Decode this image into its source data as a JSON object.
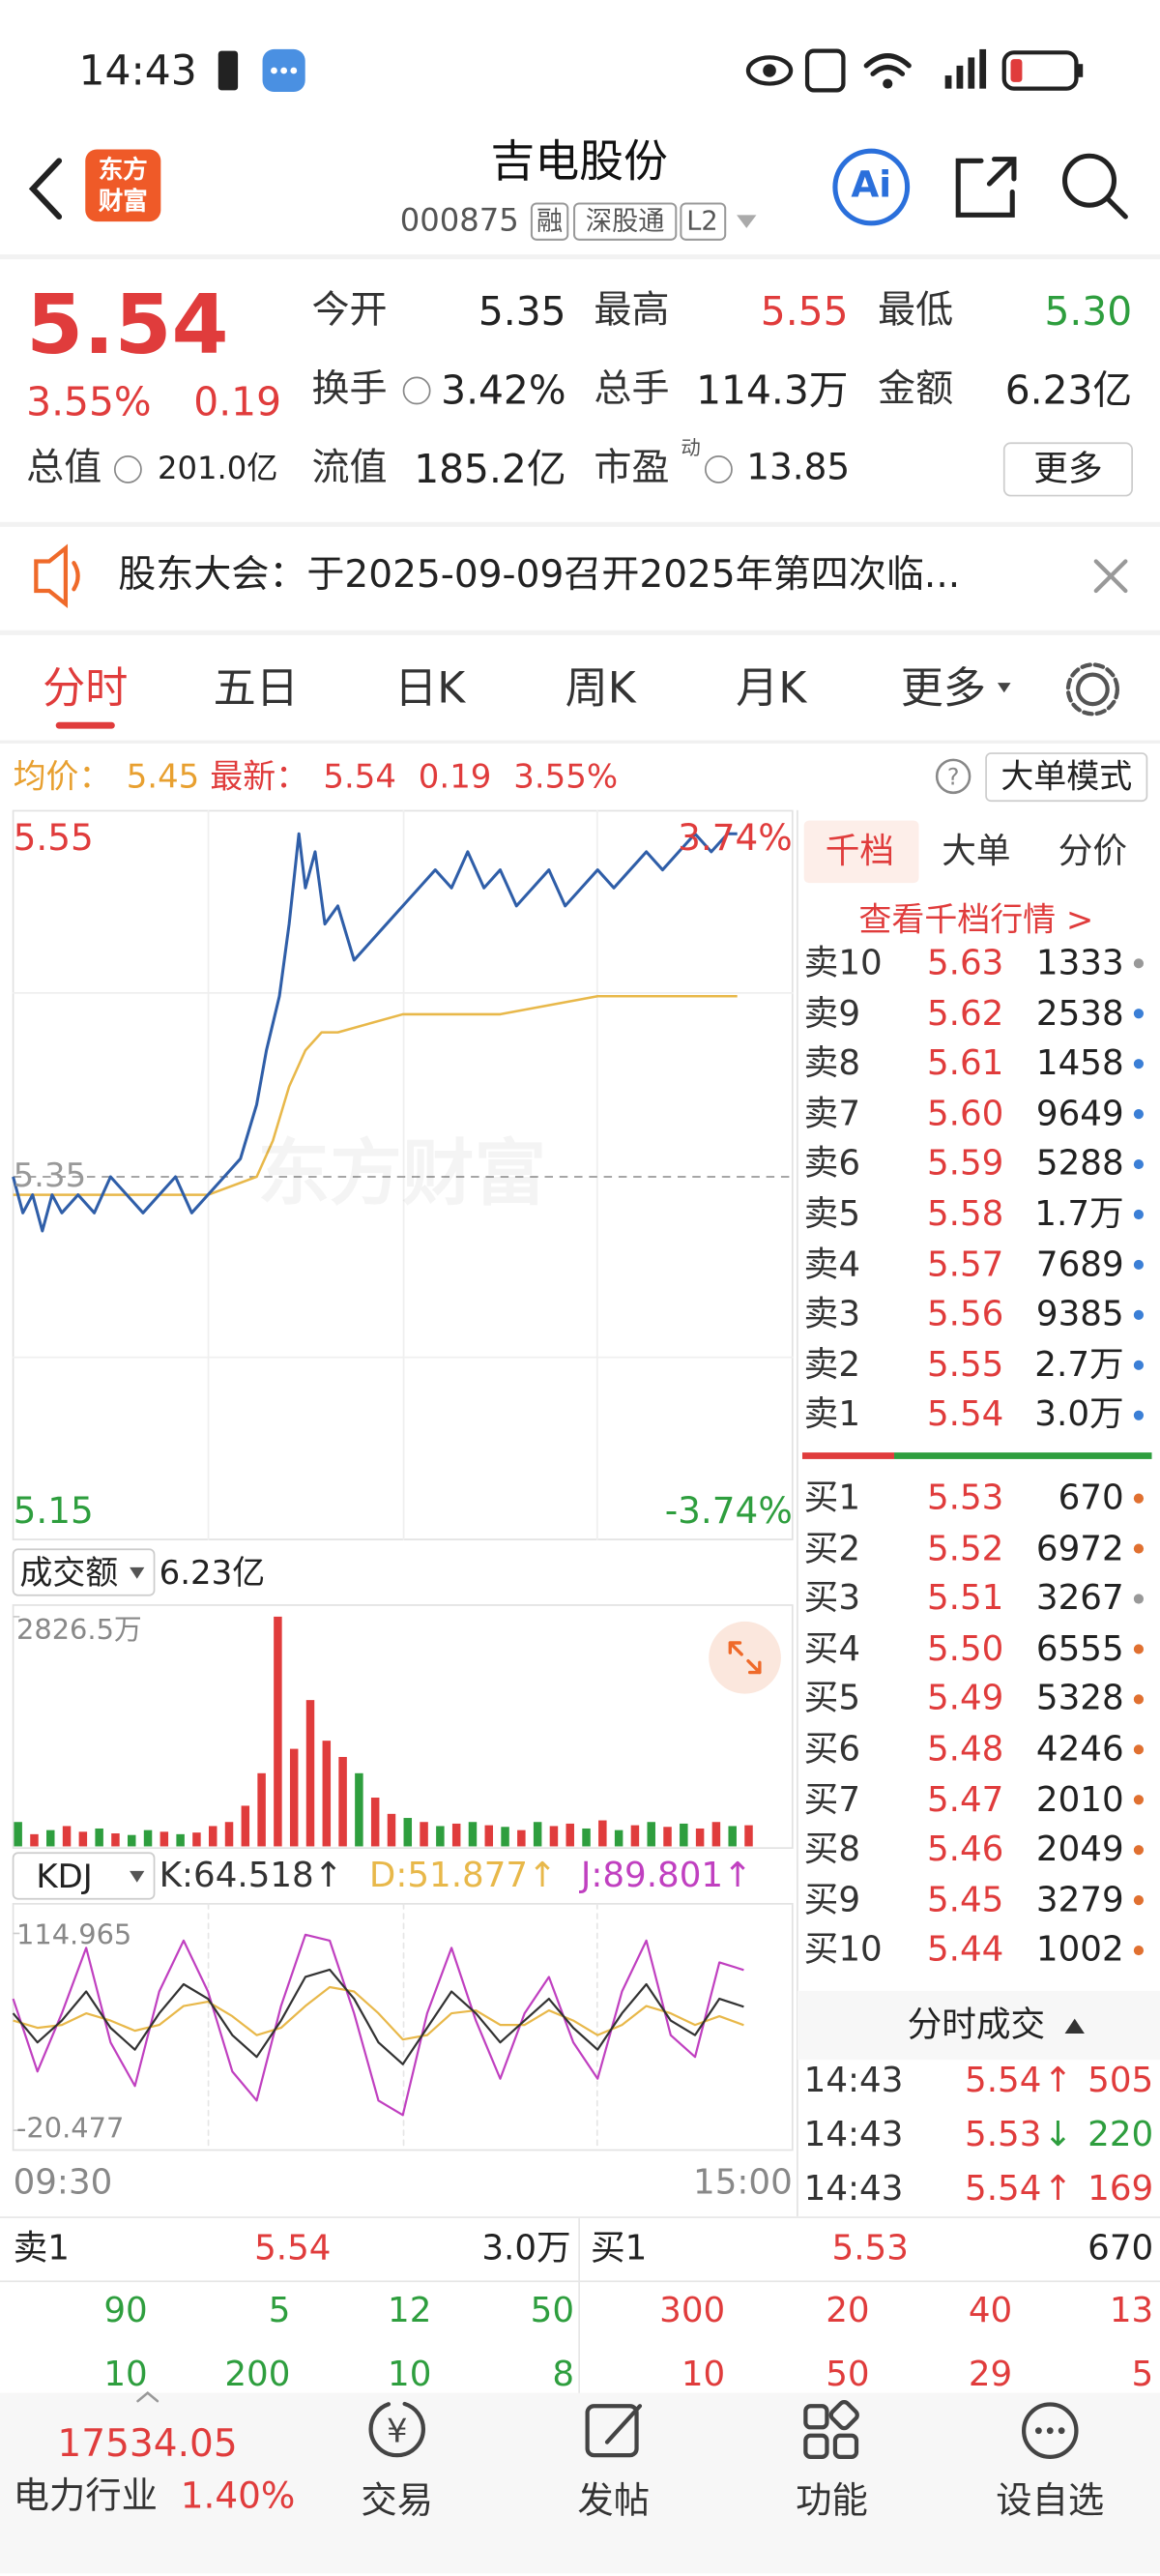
{
  "status_bar": {
    "time": "14:43"
  },
  "header": {
    "logo": [
      "东方",
      "财富"
    ],
    "title": "吉电股份",
    "code": "000875",
    "tags": [
      "融",
      "深股通",
      "L2"
    ],
    "ai": "Ai"
  },
  "quote": {
    "price": "5.54",
    "change_pct": "3.55%",
    "change": "0.19",
    "fields": [
      {
        "label": "今开",
        "value": "5.35"
      },
      {
        "label": "最高",
        "value": "5.55"
      },
      {
        "label": "最低",
        "value": "5.30"
      },
      {
        "label": "换手",
        "value": "3.42%"
      },
      {
        "label": "总手",
        "value": "114.3万"
      },
      {
        "label": "金额",
        "value": "6.23亿"
      },
      {
        "label": "总值",
        "value": "201.0亿"
      },
      {
        "label": "流值",
        "value": "185.2亿"
      },
      {
        "label": "市盈",
        "value": "13.85"
      }
    ],
    "pe_sup": "动",
    "more": "更多"
  },
  "notice": {
    "text": "股东大会：于2025-09-09召开2025年第四次临..."
  },
  "tabs": [
    "分时",
    "五日",
    "日K",
    "周K",
    "月K",
    "更多"
  ],
  "info": {
    "avg_label": "均价：",
    "avg": "5.45",
    "latest_label": "最新：",
    "latest": "5.54",
    "change": "0.19",
    "change_pct": "3.55%",
    "mode": "大单模式"
  },
  "intraday": {
    "ylim": [
      5.15,
      5.55
    ],
    "pct_labels": [
      "3.74%",
      "-3.74%"
    ],
    "prev_close": 5.35,
    "xlim": [
      0,
      240
    ],
    "x_labels": [
      "09:30",
      "15:00"
    ],
    "watermark": "东方财富",
    "price": {
      "color": "#2f5ea8",
      "x": [
        0,
        3,
        6,
        9,
        12,
        15,
        20,
        25,
        30,
        35,
        40,
        45,
        50,
        55,
        60,
        65,
        70,
        75,
        78,
        82,
        85,
        88,
        90,
        93,
        96,
        100,
        105,
        110,
        115,
        120,
        125,
        130,
        135,
        140,
        145,
        150,
        155,
        160,
        165,
        170,
        175,
        180,
        185,
        190,
        195,
        200,
        205,
        210,
        215,
        220,
        223
      ],
      "values": [
        5.35,
        5.33,
        5.34,
        5.32,
        5.34,
        5.33,
        5.34,
        5.33,
        5.35,
        5.34,
        5.33,
        5.34,
        5.35,
        5.33,
        5.34,
        5.35,
        5.36,
        5.39,
        5.42,
        5.45,
        5.49,
        5.54,
        5.51,
        5.53,
        5.49,
        5.5,
        5.47,
        5.48,
        5.49,
        5.5,
        5.51,
        5.52,
        5.51,
        5.53,
        5.51,
        5.52,
        5.5,
        5.51,
        5.52,
        5.5,
        5.51,
        5.52,
        5.51,
        5.52,
        5.53,
        5.52,
        5.53,
        5.54,
        5.53,
        5.54,
        5.54
      ]
    },
    "avg": {
      "color": "#e8b84a",
      "x": [
        0,
        30,
        60,
        75,
        80,
        85,
        90,
        95,
        100,
        120,
        150,
        180,
        200,
        223
      ],
      "values": [
        5.34,
        5.34,
        5.34,
        5.35,
        5.37,
        5.4,
        5.42,
        5.43,
        5.43,
        5.44,
        5.44,
        5.45,
        5.45,
        5.45
      ]
    }
  },
  "volume": {
    "selector": "成交额",
    "total": "6.23亿",
    "ylim": [
      0,
      2826.5
    ],
    "yticks": [
      {
        "value": 2826.5,
        "label": "2826.5万"
      }
    ],
    "x": [
      0,
      5,
      10,
      15,
      20,
      25,
      30,
      35,
      40,
      45,
      50,
      55,
      60,
      65,
      70,
      75,
      80,
      85,
      90,
      95,
      100,
      105,
      110,
      115,
      120,
      125,
      130,
      135,
      140,
      145,
      150,
      155,
      160,
      165,
      170,
      175,
      180,
      185,
      190,
      195,
      200,
      205,
      210,
      215,
      220,
      225
    ],
    "values": [
      300,
      150,
      200,
      250,
      180,
      220,
      160,
      140,
      200,
      180,
      150,
      170,
      250,
      300,
      500,
      900,
      2826,
      1200,
      1800,
      1300,
      1100,
      900,
      600,
      400,
      350,
      300,
      250,
      280,
      300,
      260,
      240,
      200,
      300,
      250,
      280,
      220,
      320,
      200,
      260,
      300,
      240,
      280,
      220,
      300,
      250,
      260
    ],
    "colors": [
      "#2e9e3e",
      "#e03c3c",
      "#2e9e3e",
      "#e03c3c",
      "#e03c3c",
      "#2e9e3e",
      "#e03c3c",
      "#2e9e3e",
      "#2e9e3e",
      "#e03c3c",
      "#2e9e3e",
      "#e03c3c",
      "#e03c3c",
      "#e03c3c",
      "#e03c3c",
      "#e03c3c",
      "#e03c3c",
      "#e03c3c",
      "#e03c3c",
      "#e03c3c",
      "#e03c3c",
      "#2e9e3e",
      "#e03c3c",
      "#e03c3c",
      "#2e9e3e",
      "#e03c3c",
      "#2e9e3e",
      "#e03c3c",
      "#2e9e3e",
      "#e03c3c",
      "#2e9e3e",
      "#e03c3c",
      "#2e9e3e",
      "#e03c3c",
      "#e03c3c",
      "#2e9e3e",
      "#e03c3c",
      "#2e9e3e",
      "#e03c3c",
      "#2e9e3e",
      "#e03c3c",
      "#2e9e3e",
      "#e03c3c",
      "#e03c3c",
      "#2e9e3e",
      "#e03c3c"
    ]
  },
  "kdj": {
    "selector": "KDJ",
    "legend": [
      "K:64.518↑",
      "D:51.877↑",
      "J:89.801↑"
    ],
    "ylim": [
      -20.477,
      114.965
    ],
    "yticks": [
      114.965,
      -20.477
    ],
    "x": [
      0,
      7.5,
      15,
      22.5,
      30,
      37.5,
      45,
      52.5,
      60,
      67.5,
      75,
      82.5,
      90,
      97.5,
      105,
      112.5,
      120,
      127.5,
      135,
      142.5,
      150,
      157.5,
      165,
      172.5,
      180,
      187.5,
      195,
      202.5,
      210,
      217.5,
      225
    ],
    "series": [
      {
        "color": "#333333",
        "values": [
          60,
          40,
          55,
          75,
          50,
          35,
          60,
          80,
          70,
          45,
          30,
          55,
          85,
          90,
          70,
          40,
          25,
          50,
          75,
          60,
          40,
          55,
          70,
          50,
          35,
          60,
          80,
          55,
          45,
          70,
          64.518
        ]
      },
      {
        "color": "#e8b84a",
        "values": [
          55,
          50,
          52,
          60,
          55,
          48,
          52,
          65,
          68,
          58,
          45,
          50,
          65,
          78,
          75,
          60,
          42,
          45,
          60,
          62,
          52,
          52,
          62,
          55,
          45,
          52,
          65,
          60,
          52,
          58,
          51.877
        ]
      },
      {
        "color": "#c040c0",
        "values": [
          70,
          20,
          60,
          105,
          40,
          10,
          75,
          110,
          75,
          20,
          0,
          65,
          114,
          110,
          60,
          0,
          -10,
          60,
          105,
          55,
          15,
          60,
          85,
          40,
          15,
          75,
          110,
          45,
          30,
          95,
          89.801
        ]
      }
    ]
  },
  "orderbook": {
    "tabs": [
      "千档",
      "大单",
      "分价"
    ],
    "link": "查看千档行情 >",
    "asks": [
      {
        "label": "卖10",
        "price": "5.63",
        "volume": "1333",
        "color": "#999999"
      },
      {
        "label": "卖9",
        "price": "5.62",
        "volume": "2538",
        "color": "#3b7fd6"
      },
      {
        "label": "卖8",
        "price": "5.61",
        "volume": "1458",
        "color": "#3b7fd6"
      },
      {
        "label": "卖7",
        "price": "5.60",
        "volume": "9649",
        "color": "#3b7fd6"
      },
      {
        "label": "卖6",
        "price": "5.59",
        "volume": "5288",
        "color": "#3b7fd6"
      },
      {
        "label": "卖5",
        "price": "5.58",
        "volume": "1.7万",
        "color": "#3b7fd6"
      },
      {
        "label": "卖4",
        "price": "5.57",
        "volume": "7689",
        "color": "#3b7fd6"
      },
      {
        "label": "卖3",
        "price": "5.56",
        "volume": "9385",
        "color": "#3b7fd6"
      },
      {
        "label": "卖2",
        "price": "5.55",
        "volume": "2.7万",
        "color": "#3b7fd6"
      },
      {
        "label": "卖1",
        "price": "5.54",
        "volume": "3.0万",
        "color": "#3b7fd6"
      }
    ],
    "bids": [
      {
        "label": "买1",
        "price": "5.53",
        "volume": "670",
        "color": "#e07030"
      },
      {
        "label": "买2",
        "price": "5.52",
        "volume": "6972",
        "color": "#e07030"
      },
      {
        "label": "买3",
        "price": "5.51",
        "volume": "3267",
        "color": "#999999"
      },
      {
        "label": "买4",
        "price": "5.50",
        "volume": "6555",
        "color": "#e07030"
      },
      {
        "label": "买5",
        "price": "5.49",
        "volume": "5328",
        "color": "#e07030"
      },
      {
        "label": "买6",
        "price": "5.48",
        "volume": "4246",
        "color": "#e07030"
      },
      {
        "label": "买7",
        "price": "5.47",
        "volume": "2010",
        "color": "#e07030"
      },
      {
        "label": "买8",
        "price": "5.46",
        "volume": "2049",
        "color": "#e07030"
      },
      {
        "label": "买9",
        "price": "5.45",
        "volume": "3279",
        "color": "#e07030"
      },
      {
        "label": "买10",
        "price": "5.44",
        "volume": "1002",
        "color": "#e07030"
      }
    ]
  },
  "trades": {
    "title": "分时成交",
    "rows": [
      {
        "time": "14:43",
        "price": "5.54",
        "arrow": "↑",
        "volume": "505",
        "color": "#e03c3c"
      },
      {
        "time": "14:43",
        "price": "5.53",
        "arrow": "↓",
        "volume": "220",
        "color": "#2e9e3e"
      },
      {
        "time": "14:43",
        "price": "5.54",
        "arrow": "↑",
        "volume": "169",
        "color": "#e03c3c"
      }
    ]
  },
  "strip": {
    "ask_label": "卖1",
    "ask_price": "5.54",
    "ask_volume": "3.0万",
    "bid_label": "买1",
    "bid_price": "5.53",
    "bid_volume": "670",
    "rows": [
      [
        "90",
        "5",
        "12",
        "50",
        "300",
        "20",
        "40",
        "13"
      ],
      [
        "10",
        "200",
        "10",
        "8",
        "10",
        "50",
        "29",
        "5"
      ]
    ]
  },
  "footer": {
    "index_value": "17534.05",
    "sector": "电力行业",
    "sector_pct": "1.40%",
    "nav": [
      "交易",
      "发帖",
      "功能",
      "设自选"
    ]
  }
}
